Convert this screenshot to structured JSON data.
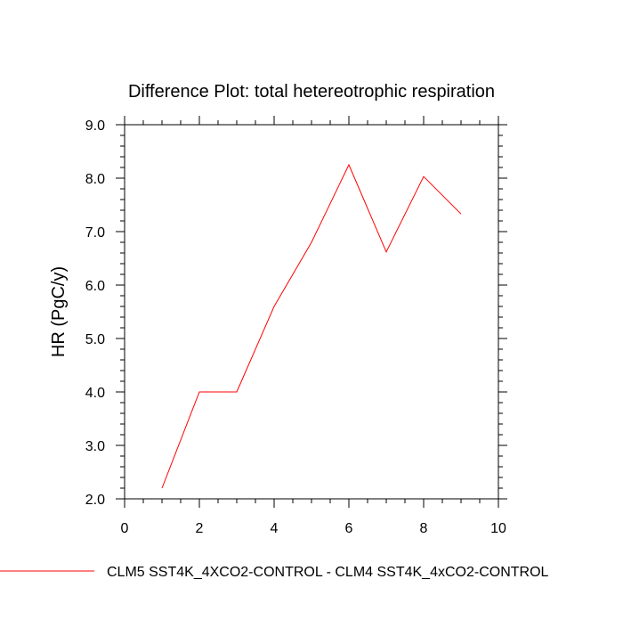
{
  "chart_data": {
    "type": "line",
    "title": "Difference Plot: total hetereotrophic respiration",
    "xlabel": "",
    "ylabel": "HR  (PgC/y)",
    "xlim": [
      0,
      10
    ],
    "ylim": [
      2.0,
      9.0
    ],
    "x_ticks": [
      0,
      2,
      4,
      6,
      8,
      10
    ],
    "x_tick_labels": [
      "0",
      "2",
      "4",
      "6",
      "8",
      "10"
    ],
    "y_ticks": [
      2.0,
      3.0,
      4.0,
      5.0,
      6.0,
      7.0,
      8.0,
      9.0
    ],
    "y_tick_labels": [
      "2.0",
      "3.0",
      "4.0",
      "5.0",
      "6.0",
      "7.0",
      "8.0",
      "9.0"
    ],
    "grid": false,
    "legend_position": "bottom",
    "series": [
      {
        "name": "CLM5 SST4K_4XCO2-CONTROL - CLM4 SST4K_4xCO2-CONTROL",
        "color": "#ff0000",
        "x": [
          1,
          2,
          3,
          4,
          5,
          6,
          7,
          8,
          9
        ],
        "y": [
          2.2,
          4.0,
          4.0,
          5.6,
          6.8,
          8.25,
          6.62,
          8.03,
          7.33
        ]
      }
    ]
  }
}
